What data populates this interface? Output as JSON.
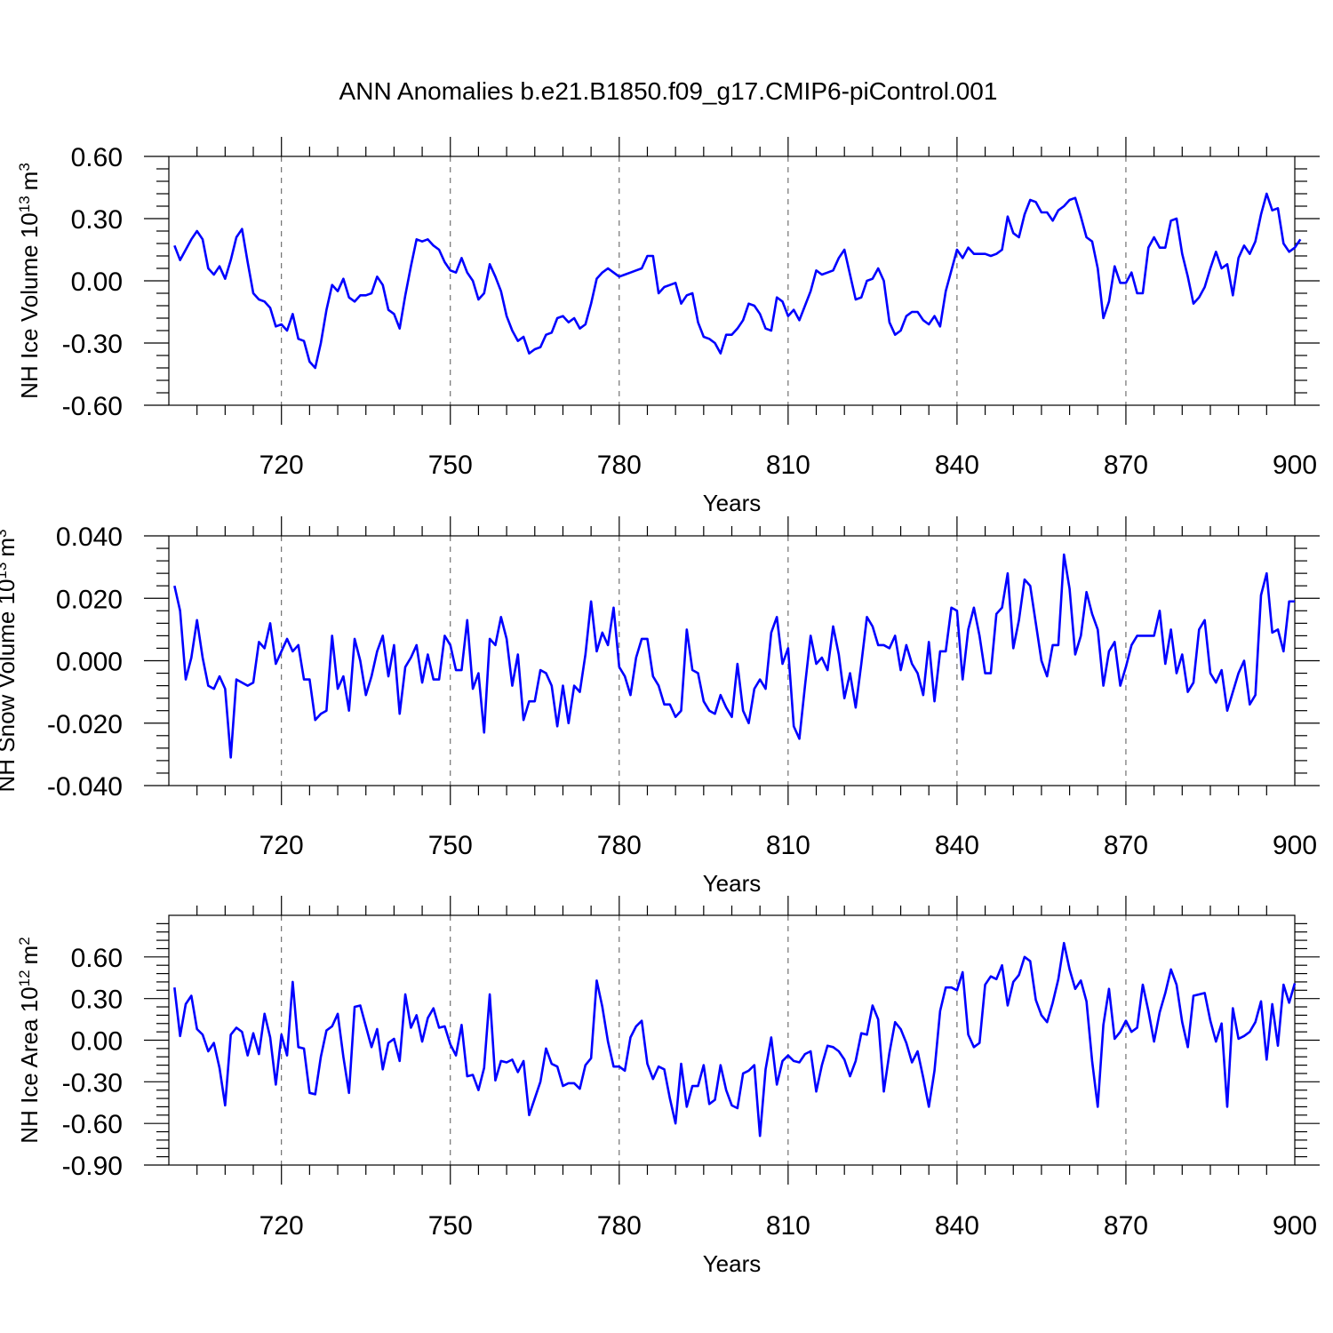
{
  "title": "ANN Anomalies b.e21.B1850.f09_g17.CMIP6-piControl.001",
  "colors": {
    "series": "#0000ff",
    "axis": "#000000",
    "grid": "#555555"
  },
  "chart_data": [
    {
      "type": "line",
      "name": "ice-volume",
      "title": "ANN Anomalies b.e21.B1850.f09_g17.CMIP6-piControl.001",
      "ylabel": "NH Ice Volume 10",
      "ylabel_sup": "13",
      "ylabel_unit": "m",
      "ylabel_unit_sup": "3",
      "xlabel": "Years",
      "xlim": [
        700,
        900
      ],
      "ylim": [
        -0.6,
        0.6
      ],
      "xticks": [
        720,
        750,
        780,
        810,
        840,
        870,
        900
      ],
      "xtick_labels": [
        "720",
        "750",
        "780",
        "810",
        "840",
        "870",
        "900"
      ],
      "yticks": [
        -0.6,
        -0.3,
        0.0,
        0.3,
        0.6
      ],
      "ytick_labels": [
        "-0.60",
        "-0.30",
        "0.00",
        "0.30",
        "0.60"
      ],
      "series": [
        {
          "name": "NH Ice Volume",
          "x_start": 701,
          "x_step": 1,
          "values": [
            0.17,
            0.1,
            0.15,
            0.2,
            0.24,
            0.2,
            0.06,
            0.03,
            0.07,
            0.01,
            0.1,
            0.21,
            0.25,
            0.09,
            -0.06,
            -0.09,
            -0.1,
            -0.13,
            -0.22,
            -0.21,
            -0.24,
            -0.16,
            -0.28,
            -0.29,
            -0.39,
            -0.42,
            -0.3,
            -0.14,
            -0.02,
            -0.05,
            0.01,
            -0.08,
            -0.1,
            -0.07,
            -0.07,
            -0.06,
            0.02,
            -0.02,
            -0.14,
            -0.16,
            -0.23,
            -0.07,
            0.07,
            0.2,
            0.19,
            0.2,
            0.17,
            0.15,
            0.09,
            0.05,
            0.04,
            0.11,
            0.04,
            0.0,
            -0.09,
            -0.06,
            0.08,
            0.02,
            -0.05,
            -0.17,
            -0.24,
            -0.29,
            -0.27,
            -0.35,
            -0.33,
            -0.32,
            -0.26,
            -0.25,
            -0.18,
            -0.17,
            -0.2,
            -0.18,
            -0.23,
            -0.21,
            -0.11,
            0.01,
            0.04,
            0.06,
            0.04,
            0.02,
            0.03,
            0.04,
            0.05,
            0.06,
            0.12,
            0.12,
            -0.06,
            -0.03,
            -0.02,
            -0.01,
            -0.11,
            -0.07,
            -0.06,
            -0.2,
            -0.27,
            -0.28,
            -0.3,
            -0.35,
            -0.26,
            -0.26,
            -0.23,
            -0.19,
            -0.11,
            -0.12,
            -0.16,
            -0.23,
            -0.24,
            -0.08,
            -0.1,
            -0.17,
            -0.14,
            -0.19,
            -0.12,
            -0.05,
            0.05,
            0.03,
            0.04,
            0.05,
            0.11,
            0.15,
            0.03,
            -0.09,
            -0.08,
            0.0,
            0.01,
            0.06,
            0.0,
            -0.2,
            -0.26,
            -0.24,
            -0.17,
            -0.15,
            -0.15,
            -0.19,
            -0.21,
            -0.17,
            -0.22,
            -0.05,
            0.05,
            0.15,
            0.11,
            0.16,
            0.13,
            0.13,
            0.13,
            0.12,
            0.13,
            0.15,
            0.31,
            0.23,
            0.21,
            0.32,
            0.39,
            0.38,
            0.33,
            0.33,
            0.29,
            0.34,
            0.36,
            0.39,
            0.4,
            0.31,
            0.21,
            0.19,
            0.06,
            -0.18,
            -0.1,
            0.07,
            -0.01,
            -0.01,
            0.04,
            -0.06,
            -0.06,
            0.16,
            0.21,
            0.16,
            0.16,
            0.29,
            0.3,
            0.13,
            0.02,
            -0.11,
            -0.08,
            -0.03,
            0.06,
            0.14,
            0.06,
            0.08,
            -0.07,
            0.11,
            0.17,
            0.13,
            0.19,
            0.32,
            0.42,
            0.34,
            0.35,
            0.18,
            0.14,
            0.16,
            0.2
          ]
        }
      ]
    },
    {
      "type": "line",
      "name": "snow-volume",
      "ylabel": "NH Snow Volume 10",
      "ylabel_sup": "13",
      "ylabel_unit": "m",
      "ylabel_unit_sup": "3",
      "xlabel": "Years",
      "xlim": [
        700,
        900
      ],
      "ylim": [
        -0.04,
        0.04
      ],
      "xticks": [
        720,
        750,
        780,
        810,
        840,
        870,
        900
      ],
      "xtick_labels": [
        "720",
        "750",
        "780",
        "810",
        "840",
        "870",
        "900"
      ],
      "yticks": [
        -0.04,
        -0.02,
        0.0,
        0.02,
        0.04
      ],
      "ytick_labels": [
        "-0.040",
        "-0.020",
        "0.000",
        "0.020",
        "0.040"
      ],
      "series": [
        {
          "name": "NH Snow Volume",
          "x_start": 701,
          "x_step": 1,
          "values": [
            0.024,
            0.016,
            -0.006,
            0.001,
            0.013,
            0.001,
            -0.008,
            -0.009,
            -0.005,
            -0.009,
            -0.031,
            -0.006,
            -0.007,
            -0.008,
            -0.007,
            0.006,
            0.004,
            0.012,
            -0.001,
            0.003,
            0.007,
            0.003,
            0.005,
            -0.006,
            -0.006,
            -0.019,
            -0.017,
            -0.016,
            0.008,
            -0.009,
            -0.005,
            -0.016,
            0.007,
            0.0,
            -0.011,
            -0.005,
            0.003,
            0.008,
            -0.005,
            0.005,
            -0.017,
            -0.002,
            0.001,
            0.005,
            -0.007,
            0.002,
            -0.006,
            -0.006,
            0.008,
            0.005,
            -0.003,
            -0.003,
            0.013,
            -0.009,
            -0.004,
            -0.023,
            0.007,
            0.005,
            0.014,
            0.007,
            -0.008,
            0.002,
            -0.019,
            -0.013,
            -0.013,
            -0.003,
            -0.004,
            -0.008,
            -0.021,
            -0.008,
            -0.02,
            -0.008,
            -0.01,
            0.002,
            0.019,
            0.003,
            0.009,
            0.005,
            0.017,
            -0.002,
            -0.005,
            -0.011,
            0.001,
            0.007,
            0.007,
            -0.005,
            -0.008,
            -0.014,
            -0.014,
            -0.018,
            -0.016,
            0.01,
            -0.003,
            -0.004,
            -0.013,
            -0.016,
            -0.017,
            -0.011,
            -0.015,
            -0.018,
            -0.001,
            -0.016,
            -0.02,
            -0.009,
            -0.006,
            -0.009,
            0.009,
            0.014,
            -0.001,
            0.004,
            -0.021,
            -0.025,
            -0.008,
            0.008,
            -0.001,
            0.001,
            -0.003,
            0.011,
            0.002,
            -0.012,
            -0.004,
            -0.015,
            -0.001,
            0.014,
            0.011,
            0.005,
            0.005,
            0.004,
            0.008,
            -0.003,
            0.005,
            -0.001,
            -0.004,
            -0.011,
            0.006,
            -0.013,
            0.003,
            0.003,
            0.017,
            0.016,
            -0.006,
            0.01,
            0.017,
            0.008,
            -0.004,
            -0.004,
            0.015,
            0.017,
            0.028,
            0.004,
            0.013,
            0.026,
            0.024,
            0.012,
            0.0,
            -0.005,
            0.005,
            0.005,
            0.034,
            0.023,
            0.002,
            0.008,
            0.022,
            0.015,
            0.01,
            -0.008,
            0.003,
            0.006,
            -0.008,
            -0.002,
            0.005,
            0.008,
            0.008,
            0.008,
            0.008,
            0.016,
            -0.001,
            0.01,
            -0.004,
            0.002,
            -0.01,
            -0.007,
            0.01,
            0.013,
            -0.004,
            -0.007,
            -0.003,
            -0.016,
            -0.01,
            -0.004,
            0.0,
            -0.014,
            -0.011,
            0.021,
            0.028,
            0.009,
            0.01,
            0.003,
            0.019,
            0.019
          ]
        }
      ]
    },
    {
      "type": "line",
      "name": "ice-area",
      "ylabel": "NH Ice Area 10",
      "ylabel_sup": "12",
      "ylabel_unit": "m",
      "ylabel_unit_sup": "2",
      "xlabel": "Years",
      "xlim": [
        700,
        900
      ],
      "ylim": [
        -0.9,
        0.9
      ],
      "xticks": [
        720,
        750,
        780,
        810,
        840,
        870,
        900
      ],
      "xtick_labels": [
        "720",
        "750",
        "780",
        "810",
        "840",
        "870",
        "900"
      ],
      "yticks": [
        -0.9,
        -0.6,
        -0.3,
        0.0,
        0.3,
        0.6
      ],
      "ytick_labels": [
        "-0.90",
        "-0.60",
        "-0.30",
        "0.00",
        "0.30",
        "0.60"
      ],
      "series": [
        {
          "name": "NH Ice Area",
          "x_start": 701,
          "x_step": 1,
          "values": [
            0.38,
            0.03,
            0.26,
            0.32,
            0.08,
            0.04,
            -0.08,
            -0.02,
            -0.2,
            -0.47,
            0.04,
            0.09,
            0.06,
            -0.11,
            0.05,
            -0.1,
            0.19,
            0.02,
            -0.32,
            0.04,
            -0.11,
            0.42,
            -0.05,
            -0.06,
            -0.38,
            -0.39,
            -0.12,
            0.07,
            0.1,
            0.19,
            -0.12,
            -0.38,
            0.24,
            0.25,
            0.1,
            -0.05,
            0.08,
            -0.21,
            -0.02,
            0.01,
            -0.15,
            0.33,
            0.09,
            0.18,
            -0.01,
            0.16,
            0.23,
            0.09,
            0.1,
            -0.03,
            -0.11,
            0.11,
            -0.26,
            -0.25,
            -0.36,
            -0.2,
            0.33,
            -0.29,
            -0.15,
            -0.16,
            -0.14,
            -0.23,
            -0.15,
            -0.54,
            -0.42,
            -0.3,
            -0.06,
            -0.17,
            -0.19,
            -0.33,
            -0.31,
            -0.31,
            -0.35,
            -0.18,
            -0.13,
            0.43,
            0.24,
            -0.01,
            -0.19,
            -0.19,
            -0.22,
            0.02,
            0.1,
            0.14,
            -0.17,
            -0.28,
            -0.19,
            -0.21,
            -0.42,
            -0.6,
            -0.17,
            -0.48,
            -0.33,
            -0.33,
            -0.18,
            -0.46,
            -0.43,
            -0.18,
            -0.36,
            -0.47,
            -0.49,
            -0.24,
            -0.22,
            -0.18,
            -0.69,
            -0.21,
            0.02,
            -0.32,
            -0.15,
            -0.11,
            -0.15,
            -0.16,
            -0.1,
            -0.08,
            -0.37,
            -0.18,
            -0.04,
            -0.05,
            -0.08,
            -0.14,
            -0.26,
            -0.15,
            0.05,
            0.04,
            0.25,
            0.15,
            -0.37,
            -0.09,
            0.13,
            0.08,
            -0.02,
            -0.16,
            -0.08,
            -0.27,
            -0.48,
            -0.22,
            0.21,
            0.38,
            0.38,
            0.36,
            0.49,
            0.04,
            -0.05,
            -0.02,
            0.4,
            0.46,
            0.44,
            0.54,
            0.25,
            0.42,
            0.47,
            0.6,
            0.57,
            0.29,
            0.18,
            0.13,
            0.27,
            0.44,
            0.7,
            0.51,
            0.37,
            0.43,
            0.28,
            -0.15,
            -0.48,
            0.11,
            0.37,
            0.01,
            0.06,
            0.14,
            0.06,
            0.09,
            0.4,
            0.21,
            -0.01,
            0.2,
            0.34,
            0.51,
            0.4,
            0.13,
            -0.05,
            0.32,
            0.33,
            0.34,
            0.14,
            -0.01,
            0.12,
            -0.48,
            0.23,
            0.01,
            0.03,
            0.06,
            0.13,
            0.28,
            -0.14,
            0.26,
            -0.04,
            0.4,
            0.27,
            0.41
          ]
        }
      ]
    }
  ]
}
